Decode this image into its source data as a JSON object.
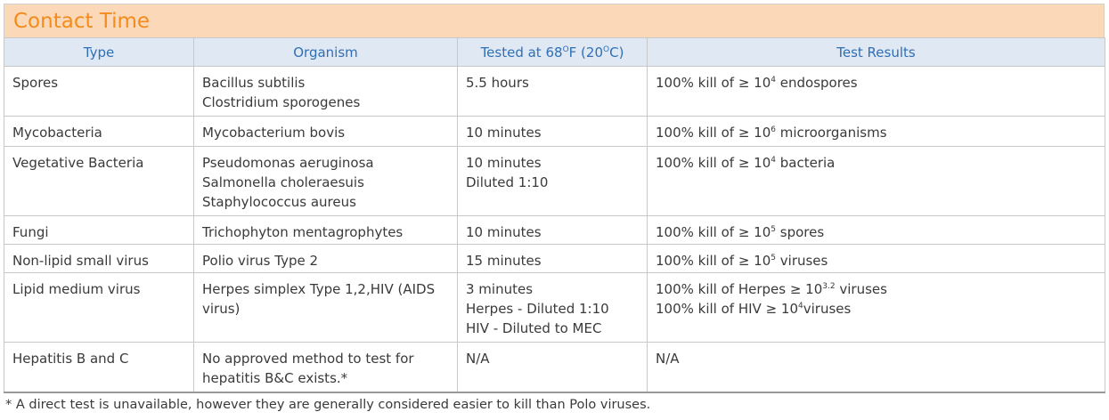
{
  "title": "Contact Time",
  "headers": {
    "type": "Type",
    "organism": "Organism",
    "tested_prefix": "Tested at 68",
    "tested_deg1": "O",
    "tested_mid": "F (20",
    "tested_deg2": "O",
    "tested_suffix": "C)",
    "results": "Test Results"
  },
  "rows": [
    {
      "type": "Spores",
      "organisms": [
        "Bacillus subtilis",
        "Clostridium sporogenes"
      ],
      "tested": [
        "5.5 hours"
      ],
      "results": [
        {
          "pre": "100% kill of ≥ 10",
          "sup": "4",
          "post": " endospores"
        }
      ]
    },
    {
      "type": "Mycobacteria",
      "organisms": [
        "Mycobacterium bovis"
      ],
      "tested": [
        "10 minutes"
      ],
      "results": [
        {
          "pre": "100% kill of ≥ 10",
          "sup": "6",
          "post": " microorganisms"
        }
      ]
    },
    {
      "type": "Vegetative Bacteria",
      "organisms": [
        "Pseudomonas aeruginosa",
        "Salmonella choleraesuis",
        "Staphylococcus aureus"
      ],
      "tested": [
        "10 minutes",
        "Diluted 1:10"
      ],
      "results": [
        {
          "pre": "100% kill of ≥ 10",
          "sup": "4",
          "post": " bacteria"
        }
      ]
    },
    {
      "type": "Fungi",
      "organisms": [
        "Trichophyton mentagrophytes"
      ],
      "tested": [
        "10 minutes"
      ],
      "results": [
        {
          "pre": "100% kill of ≥ 10",
          "sup": "5",
          "post": " spores"
        }
      ]
    },
    {
      "type": "Non-lipid small virus",
      "organisms": [
        "Polio virus Type 2"
      ],
      "tested": [
        "15 minutes"
      ],
      "results": [
        {
          "pre": "100% kill of ≥ 10",
          "sup": "5",
          "post": " viruses"
        }
      ]
    },
    {
      "type": "Lipid medium virus",
      "organism_text": "Herpes simplex Type 1,2,HIV (AIDS virus)",
      "tested": [
        "3 minutes",
        "Herpes - Diluted 1:10",
        "HIV - Diluted to MEC"
      ],
      "results": [
        {
          "pre": "100% kill of Herpes ≥ 10",
          "sup": "3.2",
          "post": " viruses"
        },
        {
          "pre": "100% kill of HIV ≥ 10",
          "sup": "4",
          "post": "viruses"
        }
      ]
    },
    {
      "type": "Hepatitis B and C",
      "organism_text": "No approved method to test for hepatitis B&C exists.*",
      "tested": [
        "N/A"
      ],
      "results": [
        {
          "pre": "N/A",
          "sup": "",
          "post": ""
        }
      ]
    }
  ],
  "footnote": "* A direct test is unavailable, however they are generally considered easier to kill than Polo viruses."
}
